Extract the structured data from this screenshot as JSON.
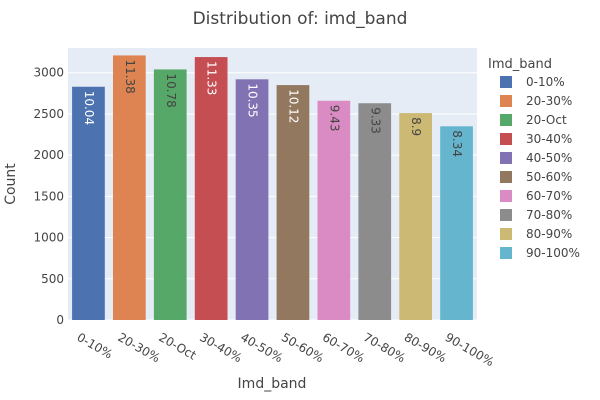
{
  "chart_data": {
    "type": "bar",
    "title": "Distribution of: imd_band",
    "xlabel": "Imd_band",
    "ylabel": "Count",
    "ylim": [
      0,
      3300
    ],
    "yticks": [
      0,
      500,
      1000,
      1500,
      2000,
      2500,
      3000
    ],
    "grid": true,
    "legend_title": "Imd_band",
    "legend_position": "right",
    "categories": [
      "0-10%",
      "20-30%",
      "20-Oct",
      "30-40%",
      "40-50%",
      "50-60%",
      "60-70%",
      "70-80%",
      "80-90%",
      "90-100%"
    ],
    "values": [
      2830,
      3210,
      3040,
      3190,
      2920,
      2850,
      2660,
      2630,
      2510,
      2350
    ],
    "labels": [
      "10.04",
      "11.38",
      "10.78",
      "11.33",
      "10.35",
      "10.12",
      "9.43",
      "9.33",
      "8.9",
      "8.34"
    ],
    "colors": [
      "#4c72b0",
      "#dd8452",
      "#55a868",
      "#c44e52",
      "#8172b3",
      "#937860",
      "#da8bc3",
      "#8c8c8c",
      "#ccb974",
      "#64b5cd"
    ],
    "label_colors": [
      "#ffffff",
      "#444444",
      "#444444",
      "#ffffff",
      "#ffffff",
      "#ffffff",
      "#444444",
      "#444444",
      "#444444",
      "#444444"
    ]
  }
}
